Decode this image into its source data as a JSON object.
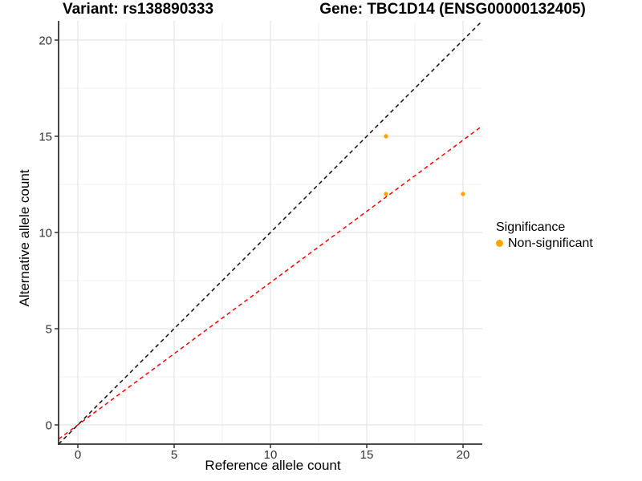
{
  "titles": {
    "variant": "Variant: rs138890333",
    "gene": "Gene: TBC1D14 (ENSG00000132405)"
  },
  "legend": {
    "title": "Significance",
    "items": [
      {
        "label": "Non-significant",
        "color": "#FFA500"
      }
    ]
  },
  "colors": {
    "point": "#FFA500",
    "identity_line": "#111111",
    "ratio_line": "#FF0000",
    "axis": "#333333",
    "tick_label": "#333333",
    "grid_major": "#E4E4E4",
    "grid_minor": "#F0F0F0",
    "background": "#FFFFFF"
  },
  "chart_data": {
    "type": "scatter",
    "title": "Variant: rs138890333 | Gene: TBC1D14 (ENSG00000132405)",
    "xlabel": "Reference allele count",
    "ylabel": "Alternative allele count",
    "xlim": [
      -1,
      21
    ],
    "ylim": [
      -1,
      21
    ],
    "x_ticks": [
      0,
      5,
      10,
      15,
      20
    ],
    "y_ticks": [
      0,
      5,
      10,
      15,
      20
    ],
    "x_minor_ticks": [
      2.5,
      7.5,
      12.5,
      17.5
    ],
    "y_minor_ticks": [
      2.5,
      7.5,
      12.5,
      17.5
    ],
    "grid": true,
    "legend_position": "right",
    "series": [
      {
        "name": "Non-significant",
        "color": "#FFA500",
        "points": [
          [
            16,
            15
          ],
          [
            16,
            12
          ],
          [
            20,
            12
          ]
        ]
      }
    ],
    "reference_lines": [
      {
        "name": "identity",
        "slope": 1,
        "intercept": 0,
        "color": "#111111",
        "style": "dashed"
      },
      {
        "name": "expected-ratio",
        "slope": 0.74,
        "intercept": 0,
        "color": "#FF0000",
        "style": "dashed"
      }
    ]
  }
}
